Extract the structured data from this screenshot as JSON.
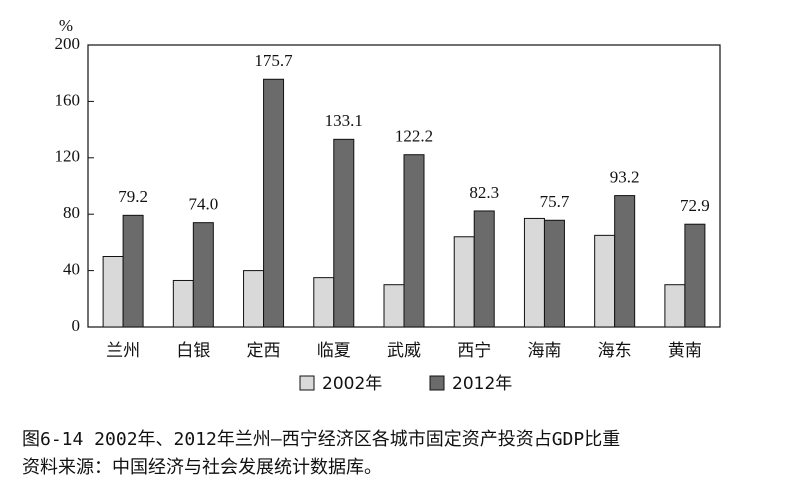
{
  "chart_data": {
    "type": "bar",
    "y_unit": "%",
    "categories": [
      "兰州",
      "白银",
      "定西",
      "临夏",
      "武威",
      "西宁",
      "海南",
      "海东",
      "黄南"
    ],
    "series": [
      {
        "name": "2002年",
        "color": "#d9d9d9",
        "values": [
          50,
          33,
          40,
          35,
          30,
          64,
          77,
          65,
          30
        ]
      },
      {
        "name": "2012年",
        "color": "#6b6b6b",
        "values": [
          79.2,
          74.0,
          175.7,
          133.1,
          122.2,
          82.3,
          75.7,
          93.2,
          72.9
        ],
        "value_labels": [
          "79.2",
          "74.0",
          "175.7",
          "133.1",
          "122.2",
          "82.3",
          "75.7",
          "93.2",
          "72.9"
        ]
      }
    ],
    "ylim": [
      0,
      200
    ],
    "yticks": [
      0,
      40,
      80,
      120,
      160,
      200
    ],
    "grid": false,
    "legend": "bottom"
  },
  "caption": {
    "title": "图6-14  2002年、2012年兰州—西宁经济区各城市固定资产投资占GDP比重",
    "source": "资料来源：中国经济与社会发展统计数据库。"
  }
}
